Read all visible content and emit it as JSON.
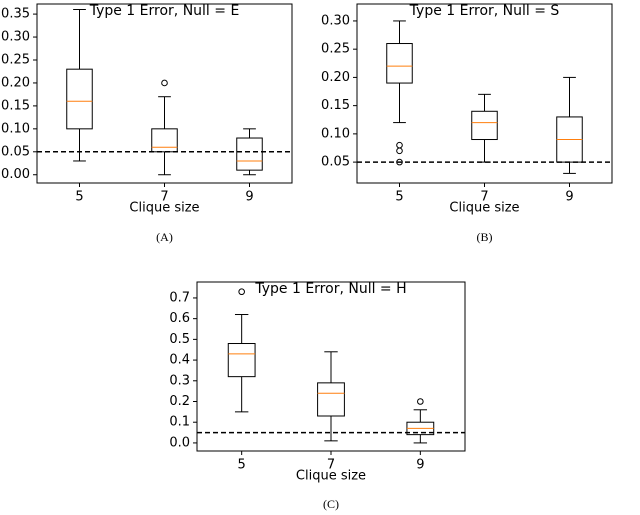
{
  "chart_data": [
    {
      "type": "box",
      "title": "Type 1 Error, Null = E",
      "xlabel": "Clique size",
      "caption": "(A)",
      "categories": [
        "5",
        "7",
        "9"
      ],
      "boxes": [
        {
          "low": 0.03,
          "q1": 0.1,
          "median": 0.16,
          "q3": 0.23,
          "high": 0.36,
          "outliers": []
        },
        {
          "low": 0.0,
          "q1": 0.05,
          "median": 0.06,
          "q3": 0.1,
          "high": 0.17,
          "outliers": [
            0.2
          ]
        },
        {
          "low": 0.0,
          "q1": 0.01,
          "median": 0.03,
          "q3": 0.08,
          "high": 0.1,
          "outliers": []
        }
      ],
      "ylim": [
        -0.018,
        0.372
      ],
      "yticks": [
        {
          "value": 0,
          "label": "0.00"
        },
        0.05,
        {
          "value": 0.1,
          "label": "0.10"
        },
        0.15,
        {
          "value": 0.2,
          "label": "0.20"
        },
        0.25,
        {
          "value": 0.3,
          "label": "0.30"
        },
        0.35
      ],
      "hline": 0.05,
      "box_color": "#000000",
      "median_color": "#ff7f0e",
      "hline_color": "#000000"
    },
    {
      "type": "box",
      "title": "Type 1 Error, Null = S",
      "xlabel": "Clique size",
      "caption": "(B)",
      "categories": [
        "5",
        "7",
        "9"
      ],
      "boxes": [
        {
          "low": 0.12,
          "q1": 0.19,
          "median": 0.22,
          "q3": 0.26,
          "high": 0.3,
          "outliers": [
            0.08,
            0.07,
            0.05
          ]
        },
        {
          "low": 0.05,
          "q1": 0.09,
          "median": 0.12,
          "q3": 0.14,
          "high": 0.17,
          "outliers": []
        },
        {
          "low": 0.03,
          "q1": 0.05,
          "median": 0.09,
          "q3": 0.13,
          "high": 0.2,
          "outliers": []
        }
      ],
      "ylim": [
        0.013,
        0.33
      ],
      "yticks": [
        0.05,
        {
          "value": 0.1,
          "label": "0.10"
        },
        0.15,
        {
          "value": 0.2,
          "label": "0.20"
        },
        0.25,
        {
          "value": 0.3,
          "label": "0.30"
        }
      ],
      "hline": 0.05,
      "box_color": "#000000",
      "median_color": "#ff7f0e",
      "hline_color": "#000000"
    },
    {
      "type": "box",
      "title": "Type 1 Error, Null = H",
      "xlabel": "Clique size",
      "caption": "(C)",
      "categories": [
        "5",
        "7",
        "9"
      ],
      "boxes": [
        {
          "low": 0.15,
          "q1": 0.32,
          "median": 0.43,
          "q3": 0.48,
          "high": 0.62,
          "outliers": [
            0.73
          ]
        },
        {
          "low": 0.01,
          "q1": 0.13,
          "median": 0.24,
          "q3": 0.29,
          "high": 0.44,
          "outliers": []
        },
        {
          "low": 0.0,
          "q1": 0.04,
          "median": 0.07,
          "q3": 0.1,
          "high": 0.16,
          "outliers": [
            0.2
          ]
        }
      ],
      "ylim": [
        -0.039,
        0.777
      ],
      "yticks": [
        {
          "value": 0,
          "label": "0.0"
        },
        0.1,
        0.2,
        0.3,
        0.4,
        0.5,
        0.6,
        0.7
      ],
      "hline": 0.05,
      "box_color": "#000000",
      "median_color": "#ff7f0e",
      "hline_color": "#000000"
    }
  ]
}
